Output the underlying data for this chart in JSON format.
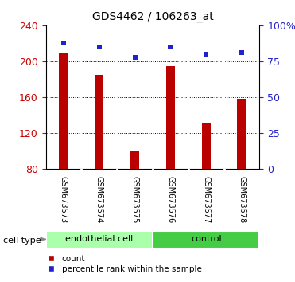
{
  "title": "GDS4462 / 106263_at",
  "samples": [
    "GSM673573",
    "GSM673574",
    "GSM673575",
    "GSM673576",
    "GSM673577",
    "GSM673578"
  ],
  "count_values": [
    210,
    185,
    100,
    195,
    132,
    158
  ],
  "percentile_values": [
    88,
    85,
    78,
    85,
    80,
    81
  ],
  "ylim_left": [
    80,
    240
  ],
  "ylim_right": [
    0,
    100
  ],
  "yticks_left": [
    80,
    120,
    160,
    200,
    240
  ],
  "yticks_right": [
    0,
    25,
    50,
    75,
    100
  ],
  "bar_color": "#bb0000",
  "scatter_color": "#2222cc",
  "group_labels": [
    "endothelial cell",
    "control"
  ],
  "group_ranges": [
    [
      0,
      3
    ],
    [
      3,
      6
    ]
  ],
  "group_color_light": "#aaffaa",
  "group_color_dark": "#44cc44",
  "tick_label_color_left": "#cc0000",
  "tick_label_color_right": "#2222cc",
  "legend_labels": [
    "count",
    "percentile rank within the sample"
  ],
  "background_color": "#ffffff",
  "plot_bg_color": "#ffffff",
  "sample_box_color": "#d0d0d0"
}
